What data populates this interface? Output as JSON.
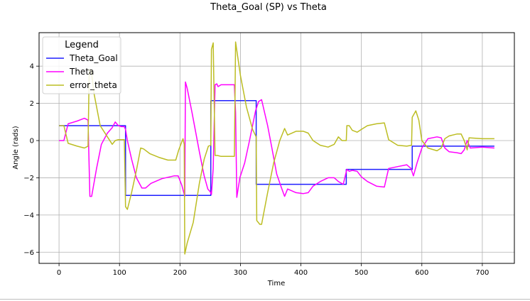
{
  "chart_data": {
    "type": "line",
    "title": "Theta_Goal (SP) vs Theta",
    "xlabel": "Time",
    "ylabel": "Angle (rads)",
    "xlim": [
      -33,
      753
    ],
    "ylim": [
      -6.6,
      5.8
    ],
    "xticks": [
      0,
      100,
      200,
      300,
      400,
      500,
      600,
      700
    ],
    "yticks": [
      -6,
      -4,
      -2,
      0,
      2,
      4
    ],
    "grid": true,
    "legend": {
      "title": "Legend",
      "position": "top-left"
    },
    "series": [
      {
        "name": "Theta_Goal",
        "color": "#1f1fff",
        "points": [
          [
            0,
            0.8
          ],
          [
            110,
            0.8
          ],
          [
            110,
            -2.95
          ],
          [
            251,
            -2.95
          ],
          [
            251,
            2.15
          ],
          [
            326,
            2.15
          ],
          [
            326,
            -2.35
          ],
          [
            475,
            -2.35
          ],
          [
            475,
            -1.55
          ],
          [
            584,
            -1.55
          ],
          [
            584,
            -0.3
          ],
          [
            720,
            -0.3
          ]
        ]
      },
      {
        "name": "Theta",
        "color": "#ff00ff",
        "points": [
          [
            0,
            0.0
          ],
          [
            8,
            0.0
          ],
          [
            15,
            0.9
          ],
          [
            30,
            1.05
          ],
          [
            42,
            1.2
          ],
          [
            48,
            1.1
          ],
          [
            51,
            -3.0
          ],
          [
            54,
            -3.0
          ],
          [
            62,
            -1.5
          ],
          [
            70,
            -0.2
          ],
          [
            80,
            0.4
          ],
          [
            88,
            0.7
          ],
          [
            93,
            1.0
          ],
          [
            98,
            0.8
          ],
          [
            103,
            0.75
          ],
          [
            108,
            0.75
          ],
          [
            110,
            0.6
          ],
          [
            113,
            0.0
          ],
          [
            120,
            -1.0
          ],
          [
            128,
            -2.0
          ],
          [
            137,
            -2.55
          ],
          [
            143,
            -2.55
          ],
          [
            152,
            -2.3
          ],
          [
            170,
            -2.05
          ],
          [
            190,
            -1.9
          ],
          [
            197,
            -1.9
          ],
          [
            203,
            -2.4
          ],
          [
            208,
            -3.0
          ],
          [
            209,
            3.15
          ],
          [
            212,
            2.8
          ],
          [
            220,
            1.5
          ],
          [
            232,
            -0.6
          ],
          [
            240,
            -1.9
          ],
          [
            246,
            -2.6
          ],
          [
            250,
            -2.75
          ],
          [
            252,
            -2.9
          ],
          [
            255,
            -1.5
          ],
          [
            258,
            3.0
          ],
          [
            261,
            3.05
          ],
          [
            263,
            2.9
          ],
          [
            268,
            3.0
          ],
          [
            290,
            3.0
          ],
          [
            292,
            1.5
          ],
          [
            294,
            -3.05
          ],
          [
            299,
            -2.0
          ],
          [
            307,
            -1.2
          ],
          [
            315,
            0.0
          ],
          [
            325,
            1.6
          ],
          [
            330,
            2.1
          ],
          [
            335,
            2.2
          ],
          [
            345,
            0.8
          ],
          [
            352,
            -0.4
          ],
          [
            360,
            -1.8
          ],
          [
            368,
            -2.55
          ],
          [
            373,
            -3.0
          ],
          [
            378,
            -2.6
          ],
          [
            392,
            -2.8
          ],
          [
            404,
            -2.85
          ],
          [
            412,
            -2.8
          ],
          [
            420,
            -2.45
          ],
          [
            432,
            -2.2
          ],
          [
            445,
            -2.0
          ],
          [
            455,
            -2.0
          ],
          [
            462,
            -2.2
          ],
          [
            470,
            -2.35
          ],
          [
            476,
            -1.55
          ],
          [
            480,
            -1.65
          ],
          [
            485,
            -1.6
          ],
          [
            493,
            -1.65
          ],
          [
            500,
            -1.95
          ],
          [
            510,
            -2.2
          ],
          [
            525,
            -2.45
          ],
          [
            538,
            -2.5
          ],
          [
            545,
            -1.5
          ],
          [
            560,
            -1.4
          ],
          [
            575,
            -1.3
          ],
          [
            582,
            -1.5
          ],
          [
            586,
            -1.9
          ],
          [
            592,
            -1.2
          ],
          [
            600,
            -0.4
          ],
          [
            610,
            0.1
          ],
          [
            625,
            0.2
          ],
          [
            632,
            0.15
          ],
          [
            638,
            -0.4
          ],
          [
            645,
            -0.6
          ],
          [
            658,
            -0.65
          ],
          [
            665,
            -0.7
          ],
          [
            670,
            -0.5
          ],
          [
            675,
            0.0
          ],
          [
            680,
            -0.4
          ],
          [
            700,
            -0.35
          ],
          [
            720,
            -0.4
          ]
        ]
      },
      {
        "name": "error_theta",
        "color": "#bcbd22",
        "points": [
          [
            0,
            0.8
          ],
          [
            8,
            0.8
          ],
          [
            15,
            -0.15
          ],
          [
            30,
            -0.3
          ],
          [
            42,
            -0.4
          ],
          [
            48,
            -0.3
          ],
          [
            50,
            3.8
          ],
          [
            53,
            3.8
          ],
          [
            58,
            2.5
          ],
          [
            68,
            0.8
          ],
          [
            80,
            0.2
          ],
          [
            88,
            -0.2
          ],
          [
            93,
            0.0
          ],
          [
            98,
            0.05
          ],
          [
            103,
            0.05
          ],
          [
            108,
            0.05
          ],
          [
            110,
            -3.55
          ],
          [
            113,
            -3.7
          ],
          [
            120,
            -2.8
          ],
          [
            128,
            -1.6
          ],
          [
            135,
            -0.4
          ],
          [
            140,
            -0.45
          ],
          [
            150,
            -0.7
          ],
          [
            165,
            -0.9
          ],
          [
            180,
            -1.05
          ],
          [
            193,
            -1.05
          ],
          [
            198,
            -0.5
          ],
          [
            205,
            0.1
          ],
          [
            207,
            -0.2
          ],
          [
            208,
            -6.1
          ],
          [
            212,
            -5.5
          ],
          [
            222,
            -4.4
          ],
          [
            232,
            -2.3
          ],
          [
            240,
            -1.0
          ],
          [
            247,
            -0.3
          ],
          [
            251,
            -0.25
          ],
          [
            252,
            4.9
          ],
          [
            255,
            5.25
          ],
          [
            258,
            -0.8
          ],
          [
            262,
            -0.8
          ],
          [
            268,
            -0.85
          ],
          [
            290,
            -0.85
          ],
          [
            292,
            5.3
          ],
          [
            300,
            3.5
          ],
          [
            310,
            1.8
          ],
          [
            320,
            0.6
          ],
          [
            326,
            0.2
          ],
          [
            327,
            -4.3
          ],
          [
            332,
            -4.5
          ],
          [
            335,
            -4.5
          ],
          [
            345,
            -2.8
          ],
          [
            355,
            -1.2
          ],
          [
            365,
            0.0
          ],
          [
            373,
            0.65
          ],
          [
            378,
            0.3
          ],
          [
            392,
            0.5
          ],
          [
            404,
            0.5
          ],
          [
            412,
            0.4
          ],
          [
            420,
            0.0
          ],
          [
            432,
            -0.25
          ],
          [
            445,
            -0.35
          ],
          [
            455,
            -0.2
          ],
          [
            462,
            0.2
          ],
          [
            468,
            0.0
          ],
          [
            475,
            0.0
          ],
          [
            476,
            0.8
          ],
          [
            480,
            0.8
          ],
          [
            485,
            0.55
          ],
          [
            493,
            0.45
          ],
          [
            500,
            0.6
          ],
          [
            510,
            0.8
          ],
          [
            525,
            0.9
          ],
          [
            538,
            0.95
          ],
          [
            545,
            0.05
          ],
          [
            560,
            -0.25
          ],
          [
            575,
            -0.3
          ],
          [
            583,
            -0.25
          ],
          [
            584,
            1.25
          ],
          [
            590,
            1.6
          ],
          [
            595,
            1.1
          ],
          [
            600,
            0.0
          ],
          [
            610,
            -0.4
          ],
          [
            625,
            -0.55
          ],
          [
            632,
            -0.4
          ],
          [
            638,
            0.1
          ],
          [
            645,
            0.25
          ],
          [
            658,
            0.35
          ],
          [
            665,
            0.35
          ],
          [
            670,
            0.0
          ],
          [
            675,
            -0.5
          ],
          [
            678,
            0.15
          ],
          [
            700,
            0.1
          ],
          [
            720,
            0.1
          ]
        ]
      }
    ]
  }
}
